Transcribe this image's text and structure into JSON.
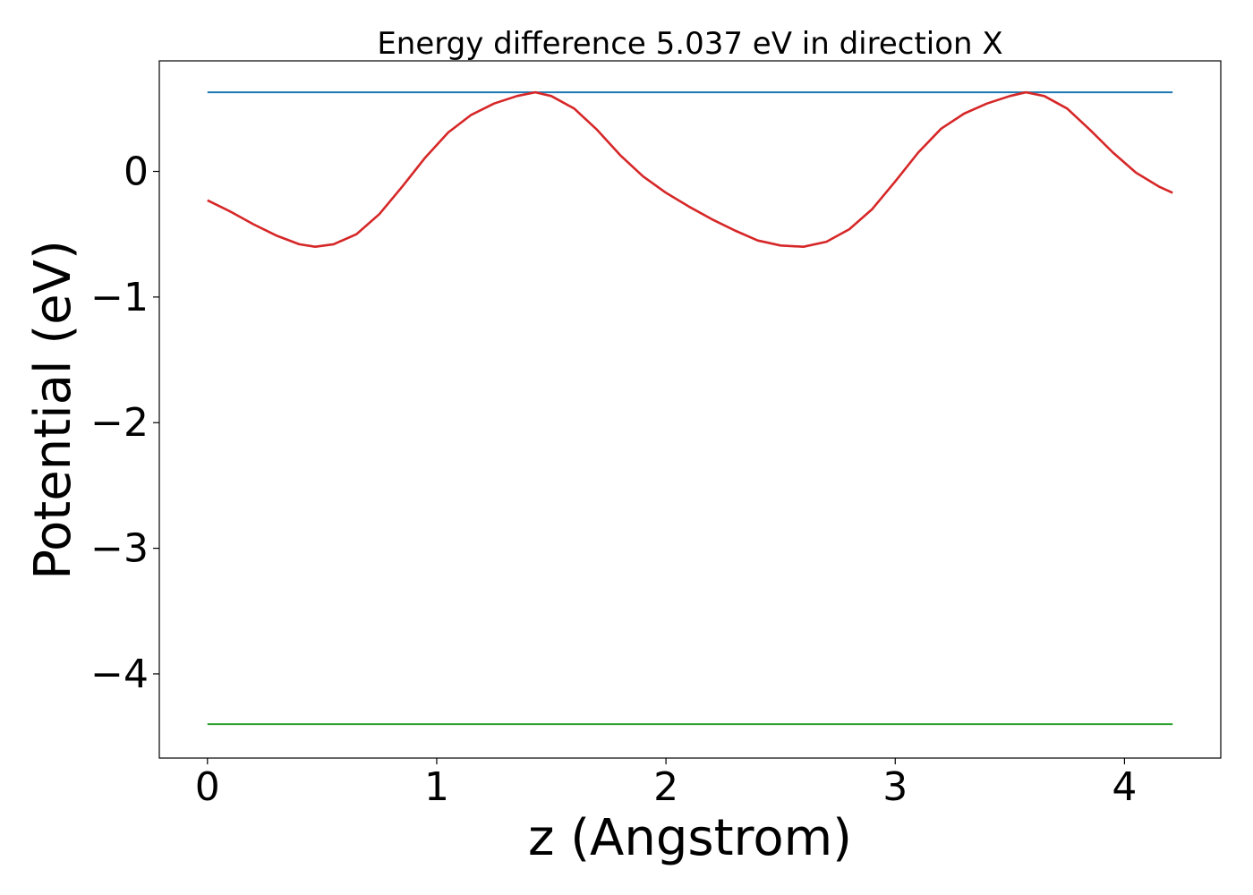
{
  "chart_data": {
    "type": "line",
    "title": "Energy difference 5.037 eV in direction X",
    "xlabel": "z (Angstrom)",
    "ylabel": "Potential (eV)",
    "xlim": [
      -0.21,
      4.42
    ],
    "ylim": [
      -4.67,
      0.88
    ],
    "xticks": [
      0,
      1,
      2,
      3,
      4
    ],
    "xtick_labels": [
      "0",
      "1",
      "2",
      "3",
      "4"
    ],
    "yticks": [
      0,
      -1,
      -2,
      -3,
      -4
    ],
    "ytick_labels": [
      "0",
      "−1",
      "−2",
      "−3",
      "−4"
    ],
    "grid": false,
    "series": [
      {
        "color": "#1f77b4",
        "x": [
          0,
          4.21
        ],
        "y": [
          0.63,
          0.63
        ]
      },
      {
        "color": "#2ca02c",
        "x": [
          0,
          4.21
        ],
        "y": [
          -4.4,
          -4.4
        ]
      },
      {
        "color": "#d62728",
        "x": [
          0,
          0.1,
          0.2,
          0.3,
          0.4,
          0.47,
          0.55,
          0.65,
          0.75,
          0.85,
          0.95,
          1.05,
          1.15,
          1.25,
          1.35,
          1.43,
          1.5,
          1.6,
          1.7,
          1.8,
          1.9,
          2.0,
          2.1,
          2.2,
          2.3,
          2.4,
          2.5,
          2.6,
          2.7,
          2.8,
          2.9,
          3.0,
          3.1,
          3.2,
          3.3,
          3.4,
          3.5,
          3.57,
          3.65,
          3.75,
          3.85,
          3.95,
          4.05,
          4.15,
          4.21
        ],
        "y": [
          -0.23,
          -0.32,
          -0.42,
          -0.51,
          -0.58,
          -0.6,
          -0.58,
          -0.5,
          -0.34,
          -0.12,
          0.11,
          0.31,
          0.45,
          0.54,
          0.6,
          0.63,
          0.6,
          0.5,
          0.33,
          0.13,
          -0.04,
          -0.17,
          -0.28,
          -0.38,
          -0.47,
          -0.55,
          -0.59,
          -0.6,
          -0.56,
          -0.46,
          -0.3,
          -0.08,
          0.15,
          0.34,
          0.46,
          0.54,
          0.6,
          0.63,
          0.6,
          0.5,
          0.33,
          0.15,
          -0.01,
          -0.12,
          -0.17
        ]
      }
    ]
  }
}
